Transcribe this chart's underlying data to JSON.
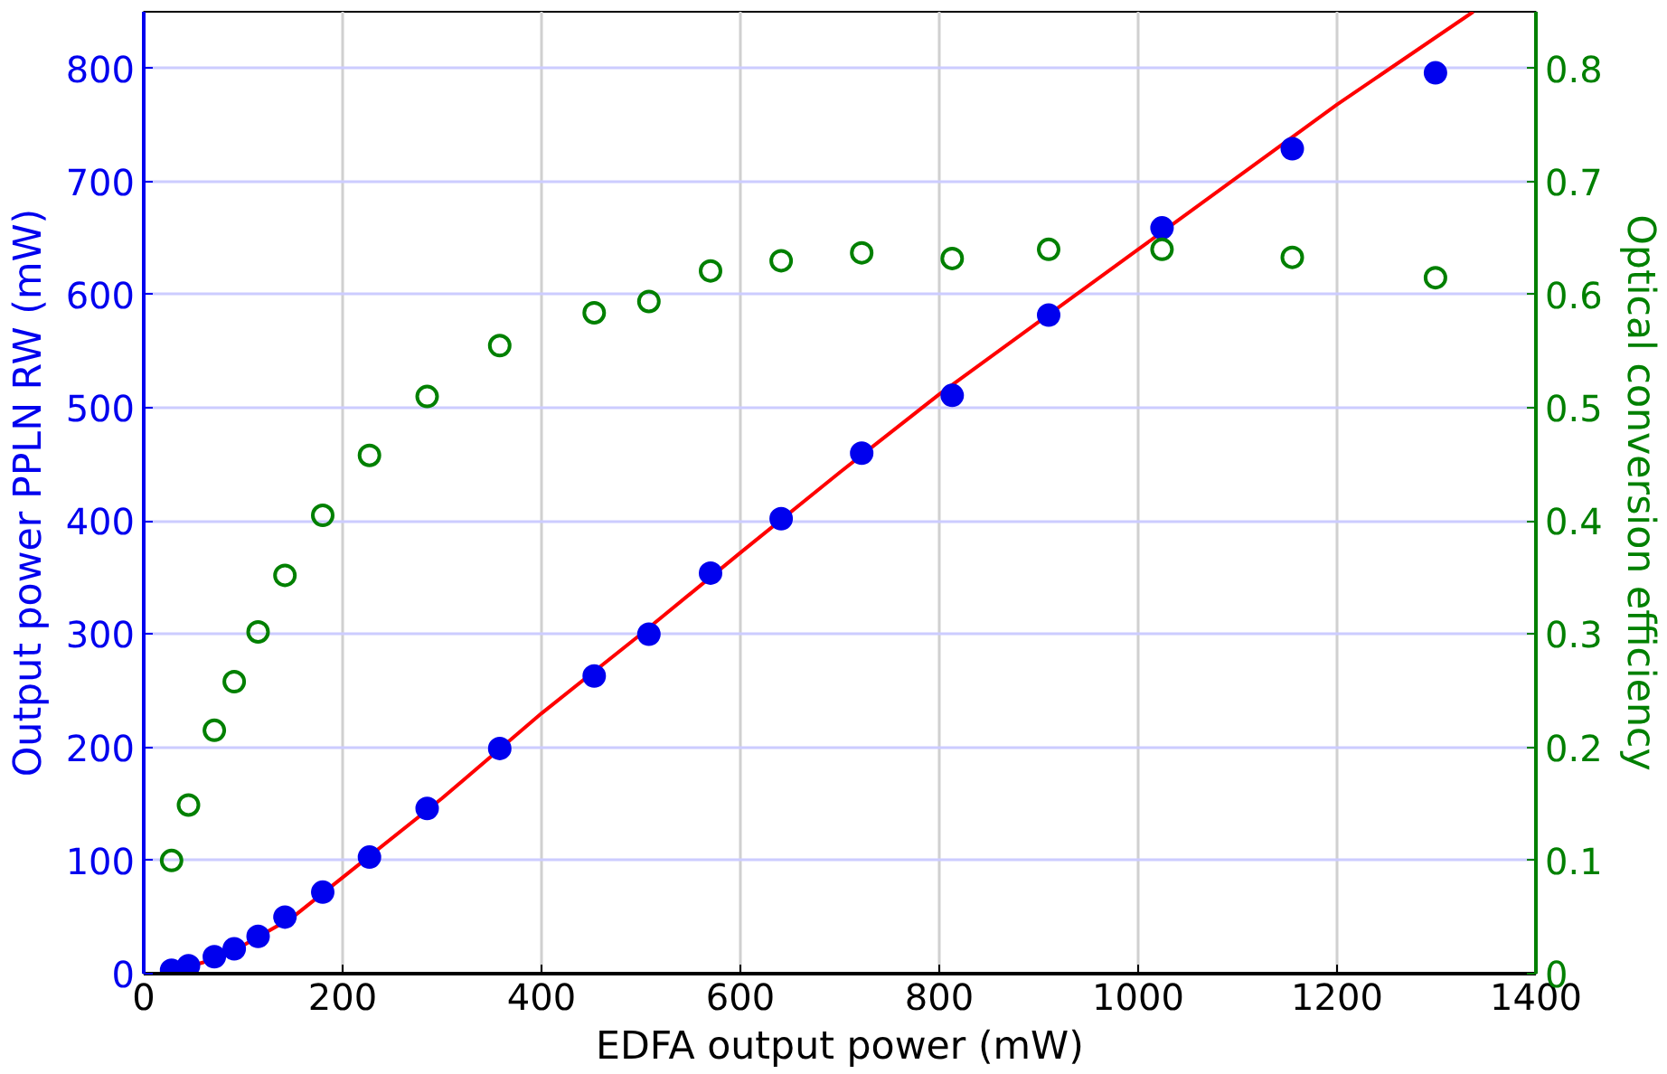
{
  "chart_data": {
    "type": "scatter",
    "xlabel": "EDFA output power (mW)",
    "ylabel": "Output power PPLN RW (mW)",
    "y2label": "Optical conversion efficiency",
    "xlim": [
      0,
      1400
    ],
    "xticks": [
      0,
      200,
      400,
      600,
      800,
      1000,
      1200,
      1400
    ],
    "ylim": [
      0,
      850
    ],
    "yticks": [
      0,
      100,
      200,
      300,
      400,
      500,
      600,
      700,
      800
    ],
    "y2lim": [
      0,
      0.85
    ],
    "y2ticks": [
      0,
      0.1,
      0.2,
      0.3,
      0.4,
      0.5,
      0.6,
      0.7,
      0.8
    ],
    "grid": true,
    "series": [
      {
        "type": "scatter",
        "color": "#0000ee",
        "marker": "circle",
        "x": [
          28,
          45,
          71,
          91,
          115,
          142,
          180,
          227,
          285,
          358,
          453,
          508,
          570,
          641,
          722,
          813,
          910,
          1024,
          1155,
          1299
        ],
        "values": [
          3,
          7,
          15,
          22,
          33,
          50,
          72,
          103,
          146,
          199,
          263,
          300,
          354,
          402,
          460,
          511,
          582,
          659,
          729,
          796
        ]
      },
      {
        "type": "scatter",
        "axis": "y2",
        "color": "#008000",
        "marker": "circle",
        "x": [
          28,
          45,
          71,
          91,
          115,
          142,
          180,
          227,
          285,
          358,
          453,
          508,
          570,
          641,
          722,
          813,
          910,
          1024,
          1155,
          1299
        ],
        "values": [
          0.1,
          0.149,
          0.215,
          0.258,
          0.302,
          0.352,
          0.405,
          0.458,
          0.51,
          0.555,
          0.584,
          0.594,
          0.621,
          0.63,
          0.637,
          0.632,
          0.64,
          0.64,
          0.633,
          0.615
        ]
      },
      {
        "type": "line",
        "color": "#ff0000",
        "marker": "none",
        "x": [
          20,
          60,
          100,
          150,
          200,
          300,
          400,
          500,
          600,
          700,
          800,
          1000,
          1200,
          1337
        ],
        "values": [
          0,
          10,
          25,
          50,
          85,
          155,
          230,
          300,
          372,
          443,
          512,
          640,
          768,
          850
        ]
      }
    ]
  }
}
